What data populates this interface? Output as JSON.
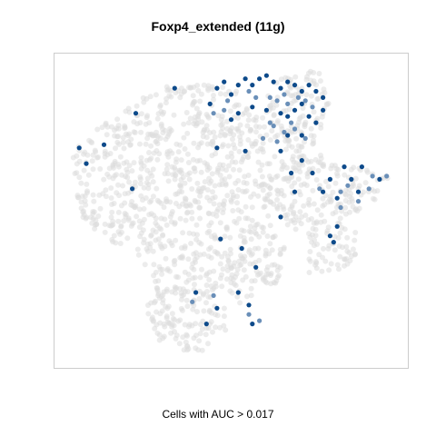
{
  "chart_data": {
    "type": "scatter",
    "title": "Foxp4_extended (11g)",
    "xlabel": "Cells with AUC > 0.017",
    "ylabel": "",
    "axes_shown": false,
    "grid": false,
    "colors": {
      "background_cells": "#dddddd",
      "highlight_dark": "#0d4a8a",
      "highlight_light": "#6a8fb8",
      "frame": "#cccccc"
    },
    "background_cluster_shape": [
      [
        0.05,
        0.32
      ],
      [
        0.12,
        0.22
      ],
      [
        0.22,
        0.16
      ],
      [
        0.32,
        0.1
      ],
      [
        0.42,
        0.09
      ],
      [
        0.52,
        0.12
      ],
      [
        0.58,
        0.2
      ],
      [
        0.62,
        0.08
      ],
      [
        0.75,
        0.05
      ],
      [
        0.78,
        0.15
      ],
      [
        0.74,
        0.3
      ],
      [
        0.78,
        0.35
      ],
      [
        0.95,
        0.38
      ],
      [
        0.92,
        0.45
      ],
      [
        0.86,
        0.52
      ],
      [
        0.85,
        0.68
      ],
      [
        0.72,
        0.7
      ],
      [
        0.7,
        0.55
      ],
      [
        0.66,
        0.58
      ],
      [
        0.64,
        0.72
      ],
      [
        0.58,
        0.78
      ],
      [
        0.5,
        0.8
      ],
      [
        0.48,
        0.9
      ],
      [
        0.4,
        0.96
      ],
      [
        0.3,
        0.92
      ],
      [
        0.26,
        0.82
      ],
      [
        0.28,
        0.7
      ],
      [
        0.22,
        0.64
      ],
      [
        0.12,
        0.58
      ],
      [
        0.05,
        0.48
      ]
    ],
    "highlighted_cells_dark": [
      [
        0.46,
        0.11
      ],
      [
        0.48,
        0.09
      ],
      [
        0.5,
        0.13
      ],
      [
        0.52,
        0.1
      ],
      [
        0.54,
        0.08
      ],
      [
        0.56,
        0.1
      ],
      [
        0.58,
        0.08
      ],
      [
        0.6,
        0.07
      ],
      [
        0.62,
        0.09
      ],
      [
        0.64,
        0.11
      ],
      [
        0.66,
        0.09
      ],
      [
        0.68,
        0.1
      ],
      [
        0.7,
        0.12
      ],
      [
        0.72,
        0.1
      ],
      [
        0.74,
        0.12
      ],
      [
        0.76,
        0.14
      ],
      [
        0.7,
        0.16
      ],
      [
        0.68,
        0.18
      ],
      [
        0.66,
        0.2
      ],
      [
        0.64,
        0.19
      ],
      [
        0.6,
        0.18
      ],
      [
        0.56,
        0.17
      ],
      [
        0.52,
        0.19
      ],
      [
        0.5,
        0.21
      ],
      [
        0.44,
        0.16
      ],
      [
        0.34,
        0.11
      ],
      [
        0.23,
        0.19
      ],
      [
        0.72,
        0.2
      ],
      [
        0.74,
        0.22
      ],
      [
        0.76,
        0.18
      ],
      [
        0.66,
        0.26
      ],
      [
        0.7,
        0.26
      ],
      [
        0.64,
        0.31
      ],
      [
        0.7,
        0.34
      ],
      [
        0.67,
        0.38
      ],
      [
        0.68,
        0.44
      ],
      [
        0.73,
        0.38
      ],
      [
        0.78,
        0.4
      ],
      [
        0.82,
        0.36
      ],
      [
        0.84,
        0.4
      ],
      [
        0.87,
        0.36
      ],
      [
        0.92,
        0.4
      ],
      [
        0.86,
        0.44
      ],
      [
        0.8,
        0.46
      ],
      [
        0.76,
        0.44
      ],
      [
        0.8,
        0.55
      ],
      [
        0.78,
        0.58
      ],
      [
        0.79,
        0.6
      ],
      [
        0.64,
        0.52
      ],
      [
        0.07,
        0.3
      ],
      [
        0.09,
        0.35
      ],
      [
        0.14,
        0.29
      ],
      [
        0.22,
        0.43
      ],
      [
        0.46,
        0.3
      ],
      [
        0.54,
        0.31
      ],
      [
        0.47,
        0.59
      ],
      [
        0.53,
        0.62
      ],
      [
        0.57,
        0.68
      ],
      [
        0.4,
        0.76
      ],
      [
        0.52,
        0.76
      ],
      [
        0.46,
        0.81
      ],
      [
        0.55,
        0.8
      ],
      [
        0.43,
        0.86
      ],
      [
        0.56,
        0.86
      ]
    ],
    "highlighted_cells_light": [
      [
        0.49,
        0.15
      ],
      [
        0.55,
        0.12
      ],
      [
        0.57,
        0.14
      ],
      [
        0.61,
        0.14
      ],
      [
        0.63,
        0.15
      ],
      [
        0.65,
        0.13
      ],
      [
        0.69,
        0.14
      ],
      [
        0.71,
        0.15
      ],
      [
        0.73,
        0.17
      ],
      [
        0.67,
        0.22
      ],
      [
        0.62,
        0.23
      ],
      [
        0.65,
        0.25
      ],
      [
        0.68,
        0.24
      ],
      [
        0.59,
        0.27
      ],
      [
        0.71,
        0.27
      ],
      [
        0.63,
        0.28
      ],
      [
        0.61,
        0.22
      ],
      [
        0.66,
        0.16
      ],
      [
        0.81,
        0.44
      ],
      [
        0.83,
        0.42
      ],
      [
        0.89,
        0.43
      ],
      [
        0.9,
        0.39
      ],
      [
        0.94,
        0.39
      ],
      [
        0.75,
        0.43
      ],
      [
        0.86,
        0.47
      ],
      [
        0.81,
        0.49
      ],
      [
        0.45,
        0.19
      ],
      [
        0.48,
        0.18
      ],
      [
        0.58,
        0.85
      ],
      [
        0.55,
        0.83
      ],
      [
        0.45,
        0.77
      ],
      [
        0.39,
        0.79
      ]
    ]
  }
}
